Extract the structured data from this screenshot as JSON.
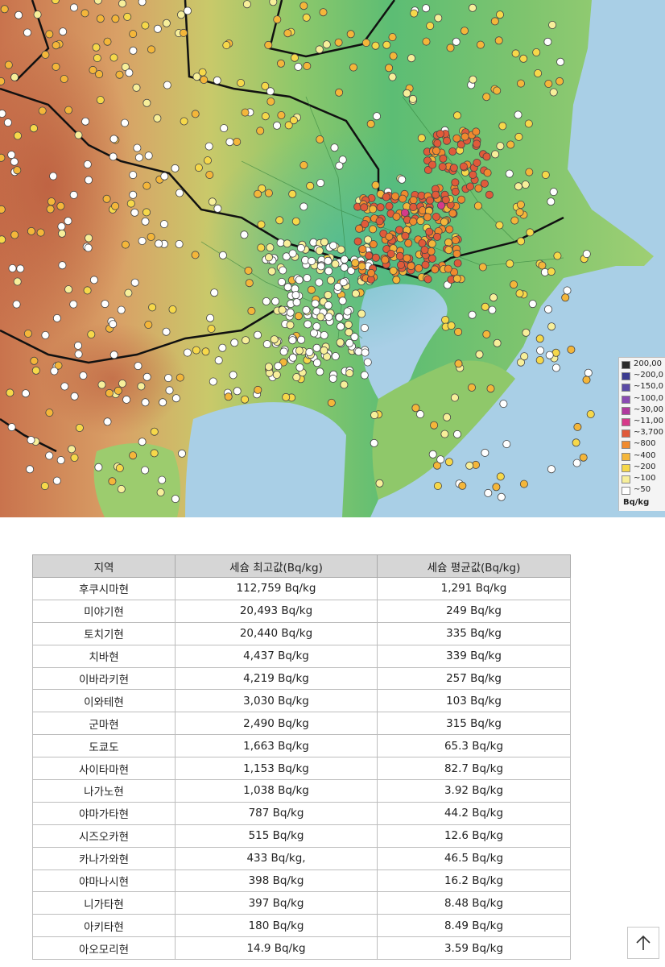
{
  "map": {
    "legend": {
      "unit": "Bq/kg",
      "items": [
        {
          "label": "200,00",
          "color": "#2a2a2a"
        },
        {
          "label": "~200,0",
          "color": "#3b3b8f"
        },
        {
          "label": "~150,0",
          "color": "#5a4aa6"
        },
        {
          "label": "~100,0",
          "color": "#8a4ab3"
        },
        {
          "label": "~30,00",
          "color": "#b03a9e"
        },
        {
          "label": "~11,00",
          "color": "#d63a8a"
        },
        {
          "label": "~3,700",
          "color": "#e05a3a"
        },
        {
          "label": "~800",
          "color": "#f08a2e"
        },
        {
          "label": "~400",
          "color": "#f4b63a"
        },
        {
          "label": "~200",
          "color": "#f6d84a"
        },
        {
          "label": "~100",
          "color": "#f7ef9a"
        },
        {
          "label": "~50",
          "color": "#ffffff"
        }
      ]
    }
  },
  "table": {
    "headers": [
      "지역",
      "세슘 최고값(Bq/kg)",
      "세슘 평균값(Bq/kg)"
    ],
    "rows": [
      [
        "후쿠시마현",
        "112,759 Bq/kg",
        "1,291 Bq/kg"
      ],
      [
        "미야기현",
        "20,493 Bq/kg",
        "249 Bq/kg"
      ],
      [
        "토치기현",
        "20,440 Bq/kg",
        "335 Bq/kg"
      ],
      [
        "치바현",
        "4,437 Bq/kg",
        "339 Bq/kg"
      ],
      [
        "이바라키현",
        "4,219 Bq/kg",
        "257 Bq/kg"
      ],
      [
        "이와테현",
        "3,030 Bq/kg",
        "103 Bq/kg"
      ],
      [
        "군마현",
        "2,490 Bq/kg",
        "315 Bq/kg"
      ],
      [
        "도쿄도",
        "1,663 Bq/kg",
        "65.3 Bq/kg"
      ],
      [
        "사이타마현",
        "1,153 Bq/kg",
        "82.7 Bq/kg"
      ],
      [
        "나가노현",
        "1,038 Bq/kg",
        "3.92 Bq/kg"
      ],
      [
        "야마가타현",
        "787 Bq/kg",
        "44.2 Bq/kg"
      ],
      [
        "시즈오카현",
        "515 Bq/kg",
        "12.6 Bq/kg"
      ],
      [
        "카나가와현",
        "433 Bq/kg,",
        "46.5 Bq/kg"
      ],
      [
        "야마나시현",
        "398 Bq/kg",
        "16.2 Bq/kg"
      ],
      [
        "니가타현",
        "397 Bq/kg",
        "8.48 Bq/kg"
      ],
      [
        "아키타현",
        "180 Bq/kg",
        "8.49 Bq/kg"
      ],
      [
        "아오모리현",
        "14.9 Bq/kg",
        "3.59 Bq/kg"
      ]
    ]
  },
  "scroll_top": {
    "icon": "arrow-up-icon"
  }
}
